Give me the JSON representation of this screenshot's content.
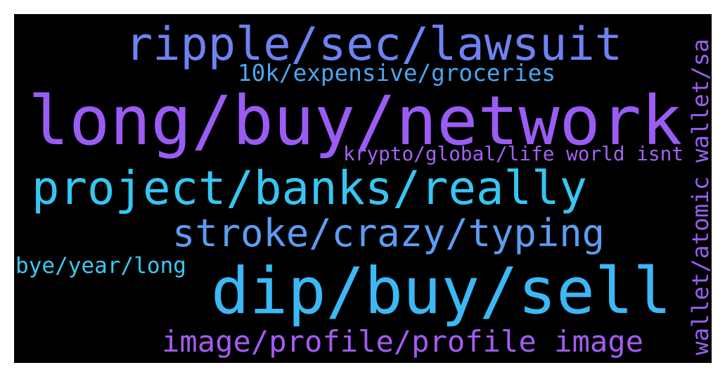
{
  "words": [
    {
      "text": "ripple/sec/lawsuit",
      "color": "#6f82f2"
    },
    {
      "text": "10k/expensive/groceries",
      "color": "#4aa6f2"
    },
    {
      "text": "long/buy/network",
      "color": "#9a5cf4"
    },
    {
      "text": "krypto/global/life world isnt",
      "color": "#a362f2"
    },
    {
      "text": "project/banks/really",
      "color": "#36c6f2"
    },
    {
      "text": "stroke/crazy/typing",
      "color": "#5d9cf2"
    },
    {
      "text": "bye/year/long",
      "color": "#3ac8f2"
    },
    {
      "text": "dip/buy/sell",
      "color": "#3cb8f6"
    },
    {
      "text": "image/profile/profile image",
      "color": "#a35cf2"
    },
    {
      "text": "wallet/atomic wallet/sa",
      "color": "#9a60f2"
    }
  ]
}
